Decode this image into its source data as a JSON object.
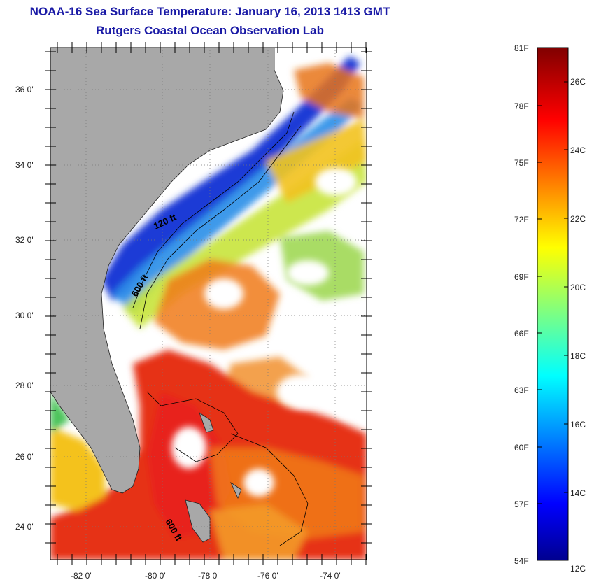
{
  "title": "NOAA-16 Sea Surface Temperature:  January 16, 2013 1413 GMT",
  "subtitle": "Rutgers Coastal Ocean Observation Lab",
  "map": {
    "lat_ticks": [
      "24 0'",
      "26 0'",
      "28 0'",
      "30 0'",
      "32 0'",
      "34 0'",
      "36 0'"
    ],
    "lon_ticks": [
      "-82 0'",
      "-80 0'",
      "-78 0'",
      "-76 0'",
      "-74 0'"
    ],
    "contour_labels": [
      "120 ft",
      "600 ft",
      "600 ft"
    ],
    "colors": {
      "land": "#a8a8a8",
      "background": "#ffffff"
    }
  },
  "colorbar": {
    "fahrenheit_labels": [
      "81F",
      "78F",
      "75F",
      "72F",
      "69F",
      "66F",
      "63F",
      "60F",
      "57F",
      "54F"
    ],
    "celsius_labels": [
      "26C",
      "24C",
      "22C",
      "20C",
      "18C",
      "16C",
      "14C",
      "12C"
    ],
    "range_f": [
      54,
      81
    ],
    "range_c": [
      12,
      27
    ],
    "colormap": "jet"
  }
}
